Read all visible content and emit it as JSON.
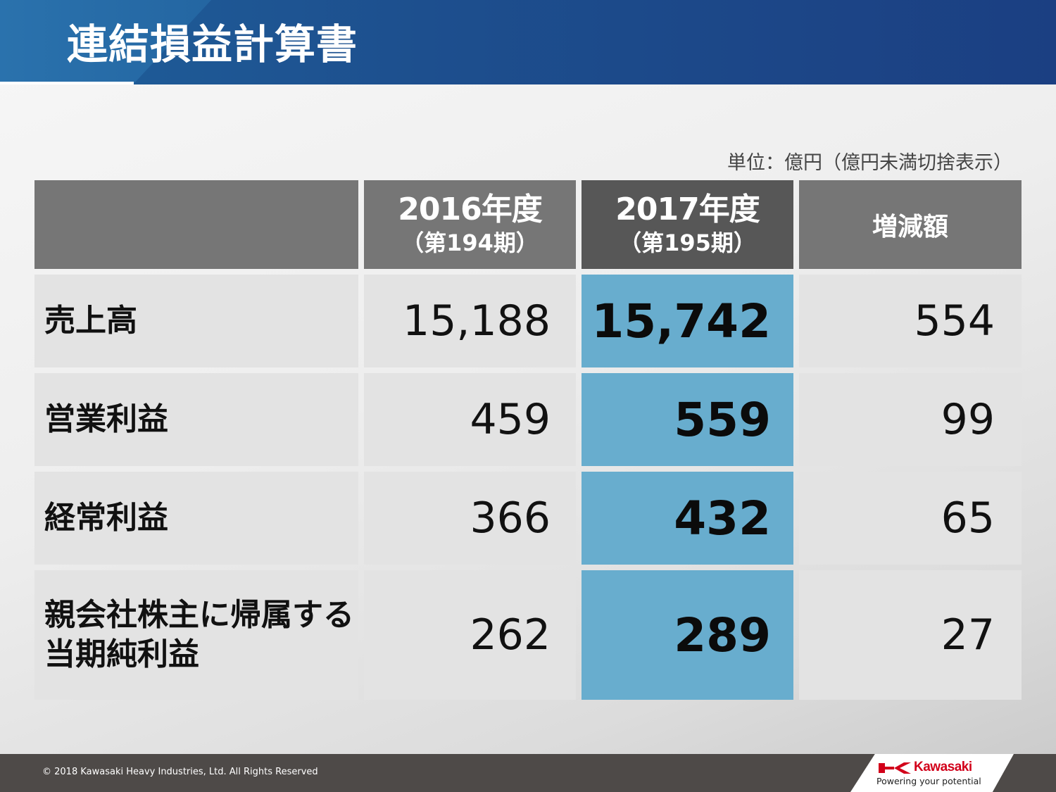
{
  "header": {
    "title": "連結損益計算書"
  },
  "unit_note": "単位：億円（億円未満切捨表示）",
  "table": {
    "columns": [
      {
        "year": "2016年度",
        "period": "（第194期）"
      },
      {
        "year": "2017年度",
        "period": "（第195期）"
      },
      {
        "label": "増減額"
      }
    ],
    "rows": [
      {
        "label": [
          "売上高"
        ],
        "fy2016": "15,188",
        "fy2017": "15,742",
        "change": "554"
      },
      {
        "label": [
          "営業利益"
        ],
        "fy2016": "459",
        "fy2017": "559",
        "change": "99"
      },
      {
        "label": [
          "経常利益"
        ],
        "fy2016": "366",
        "fy2017": "432",
        "change": "65"
      },
      {
        "label": [
          "親会社株主に帰属する",
          "当期純利益"
        ],
        "fy2016": "262",
        "fy2017": "289",
        "change": "27"
      }
    ]
  },
  "colors": {
    "header_blue": "#1d4f8e",
    "header_gray": "#767676",
    "header_dark_gray": "#575757",
    "highlight_blue": "#68adce",
    "cell_gray": "#e3e3e3",
    "footer": "#4e4a48",
    "logo_red": "#d2001a"
  },
  "footer": {
    "copyright": "© 2018 Kawasaki Heavy Industries, Ltd. All Rights Reserved",
    "logo": {
      "wordmark": "Kawasaki",
      "tagline": "Powering your potential"
    }
  }
}
